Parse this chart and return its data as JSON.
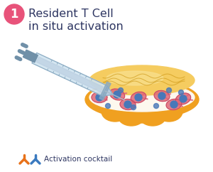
{
  "bg_color": "#ffffff",
  "title_line1": "Resident T Cell",
  "title_line2": "in situ activation",
  "title_color": "#2d3561",
  "title_fontsize": 11.5,
  "step_number": "1",
  "step_circle_color": "#e8537a",
  "step_text_color": "#ffffff",
  "legend_text": "Activation cocktail",
  "legend_text_color": "#2d3561",
  "legend_y_color1": "#e8721a",
  "legend_y_color2": "#3a7abf",
  "dish_outer_color": "#f0a020",
  "dish_top_color": "#f5cc60",
  "dish_layer_color": "#faefd0",
  "dish_white_layer": "#fdf8ee",
  "syringe_body_color": "#d0e4f0",
  "syringe_dark": "#88a8c0",
  "syringe_plunger": "#7090a8",
  "needle_color": "#a8bcc8",
  "cell_pink": "#e06878",
  "cell_blue": "#4878b8",
  "cell_outline": "#c04060"
}
